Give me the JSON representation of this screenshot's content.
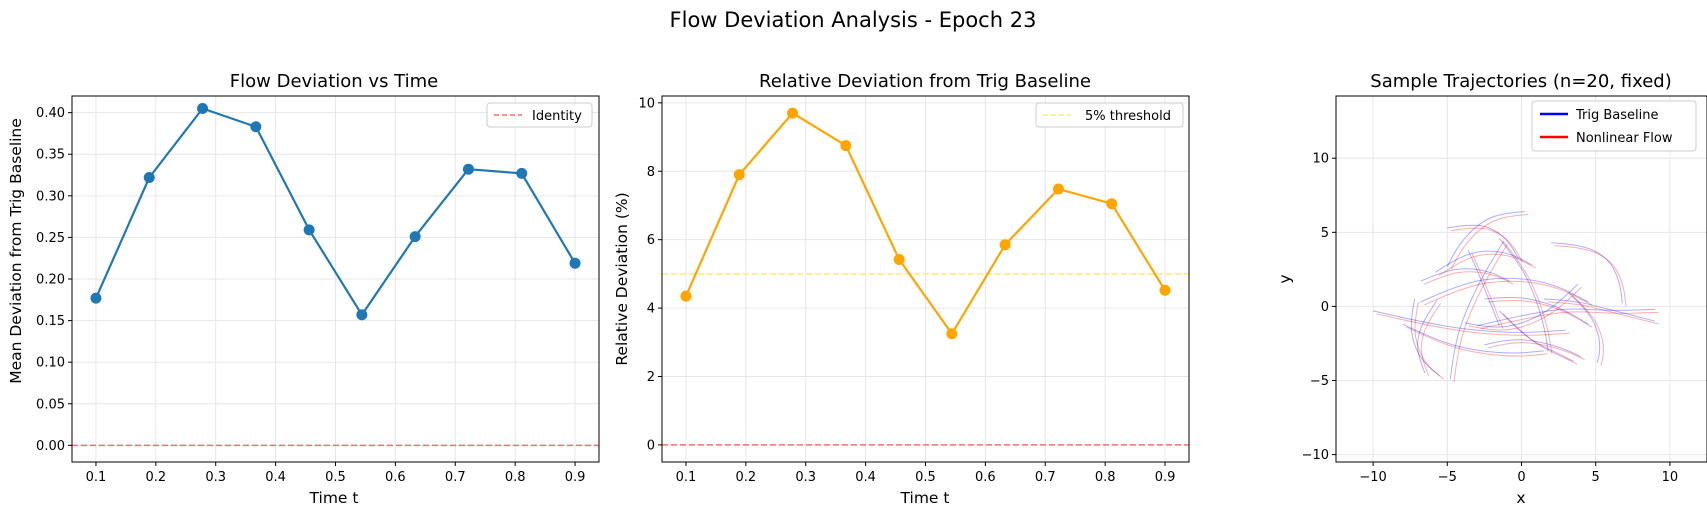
{
  "figure": {
    "title": "Flow Deviation Analysis - Epoch 23"
  },
  "chart_data": [
    {
      "type": "line",
      "title": "Flow Deviation vs Time",
      "xlabel": "Time t",
      "ylabel": "Mean Deviation from Trig Baseline",
      "xlim": [
        0.06,
        0.94
      ],
      "ylim": [
        -0.02,
        0.42
      ],
      "xticks": [
        "0.1",
        "0.2",
        "0.3",
        "0.4",
        "0.5",
        "0.6",
        "0.7",
        "0.8",
        "0.9"
      ],
      "yticks": [
        "0.00",
        "0.05",
        "0.10",
        "0.15",
        "0.20",
        "0.25",
        "0.30",
        "0.35",
        "0.40"
      ],
      "grid": true,
      "legend": "top-right",
      "series": [
        {
          "name": "",
          "color": "#1f77b4",
          "x": [
            0.1,
            0.189,
            0.278,
            0.367,
            0.456,
            0.544,
            0.633,
            0.722,
            0.811,
            0.9
          ],
          "y": [
            0.177,
            0.322,
            0.405,
            0.383,
            0.259,
            0.157,
            0.251,
            0.332,
            0.327,
            0.219
          ]
        }
      ],
      "reference_lines": [
        {
          "name": "Identity",
          "y": 0.0,
          "color": "#ff6b6b",
          "style": "dashed"
        }
      ]
    },
    {
      "type": "line",
      "title": "Relative Deviation from Trig Baseline",
      "xlabel": "Time t",
      "ylabel": "Relative Deviation (%)",
      "xlim": [
        0.06,
        0.94
      ],
      "ylim": [
        -0.5,
        10.2
      ],
      "xticks": [
        "0.1",
        "0.2",
        "0.3",
        "0.4",
        "0.5",
        "0.6",
        "0.7",
        "0.8",
        "0.9"
      ],
      "yticks": [
        "0",
        "2",
        "4",
        "6",
        "8",
        "10"
      ],
      "grid": true,
      "legend": "top-right",
      "series": [
        {
          "name": "",
          "color": "#ffa500",
          "x": [
            0.1,
            0.189,
            0.278,
            0.367,
            0.456,
            0.544,
            0.633,
            0.722,
            0.811,
            0.9
          ],
          "y": [
            4.35,
            7.9,
            9.7,
            8.75,
            5.42,
            3.25,
            5.85,
            7.48,
            7.05,
            4.52
          ]
        }
      ],
      "reference_lines": [
        {
          "name": "5% threshold",
          "y": 5.0,
          "color": "#ffeb70",
          "style": "dashed"
        },
        {
          "name": "",
          "y": 0.0,
          "color": "#ff6b6b",
          "style": "dashed"
        }
      ]
    },
    {
      "type": "line",
      "title": "Sample Trajectories (n=20, fixed)",
      "xlabel": "x",
      "ylabel": "y",
      "xlim": [
        -12.5,
        12.5
      ],
      "ylim": [
        -10.5,
        14.2
      ],
      "xticks": [
        "−10",
        "−5",
        "0",
        "5",
        "10"
      ],
      "yticks": [
        "−10",
        "−5",
        "0",
        "5",
        "10"
      ],
      "grid": true,
      "legend": "top-right",
      "legend_entries": [
        {
          "name": "Trig Baseline",
          "color": "#0000ff"
        },
        {
          "name": "Nonlinear Flow",
          "color": "#ff0000"
        }
      ],
      "trajectories": [
        [
          [
            -10,
            -0.3
          ],
          [
            -7,
            -1
          ],
          [
            -3.5,
            -1.6
          ],
          [
            0,
            -1.8
          ],
          [
            3,
            -1.6
          ]
        ],
        [
          [
            -6.8,
            0.3
          ],
          [
            -4,
            1.6
          ],
          [
            -1,
            2
          ],
          [
            2,
            1.6
          ],
          [
            4.5,
            0.3
          ]
        ],
        [
          [
            -4.8,
            -4.9
          ],
          [
            -4.5,
            -2.4
          ],
          [
            -3.5,
            0.3
          ],
          [
            -2.3,
            2.6
          ],
          [
            -1.2,
            4.4
          ]
        ],
        [
          [
            -1.5,
            4.6
          ],
          [
            -0.2,
            3
          ],
          [
            0.8,
            1
          ],
          [
            1.5,
            -1.2
          ],
          [
            1.8,
            -3
          ]
        ],
        [
          [
            2,
            4.3
          ],
          [
            4,
            4.2
          ],
          [
            5.8,
            3.3
          ],
          [
            6.6,
            1.8
          ],
          [
            6.8,
            0.2
          ]
        ],
        [
          [
            -3,
            -1.3
          ],
          [
            0,
            -0.6
          ],
          [
            3,
            -0.1
          ],
          [
            6,
            -0.3
          ],
          [
            9,
            -0.2
          ]
        ],
        [
          [
            -5,
            5.3
          ],
          [
            -3.2,
            5.6
          ],
          [
            -1.8,
            5.2
          ],
          [
            -0.8,
            4.3
          ],
          [
            -0.2,
            3.2
          ]
        ],
        [
          [
            -6.8,
            1.7
          ],
          [
            -5.2,
            2.4
          ],
          [
            -3.5,
            2.6
          ],
          [
            -2,
            2.3
          ],
          [
            -0.8,
            1.7
          ]
        ],
        [
          [
            0.2,
            6.4
          ],
          [
            -1.5,
            6.3
          ],
          [
            -3,
            5.5
          ],
          [
            -4.2,
            4.2
          ],
          [
            -5,
            2.7
          ]
        ],
        [
          [
            -2.5,
            -2.6
          ],
          [
            -1,
            -2.2
          ],
          [
            1,
            -2.3
          ],
          [
            3,
            -2.9
          ],
          [
            4,
            -3.4
          ]
        ],
        [
          [
            -8,
            -1.2
          ],
          [
            -5.5,
            -2.4
          ],
          [
            -3,
            -3
          ],
          [
            -0.5,
            -3.2
          ],
          [
            1.5,
            -3
          ]
        ],
        [
          [
            -6.5,
            -4.5
          ],
          [
            -7,
            -3.3
          ],
          [
            -7,
            -2
          ],
          [
            -6.5,
            -0.8
          ],
          [
            -5.7,
            0.4
          ]
        ],
        [
          [
            -2.5,
            0.5
          ],
          [
            -0.5,
            0.7
          ],
          [
            1.5,
            0.3
          ],
          [
            3,
            -0.3
          ],
          [
            4.5,
            -1.2
          ]
        ],
        [
          [
            1.5,
            0.5
          ],
          [
            3.5,
            0.4
          ],
          [
            5.5,
            -0.1
          ],
          [
            7.5,
            -0.6
          ],
          [
            9,
            -1
          ]
        ],
        [
          [
            -3.6,
            3.8
          ],
          [
            -3,
            2.5
          ],
          [
            -2.5,
            1.2
          ],
          [
            -2,
            0
          ],
          [
            -1.5,
            -1.3
          ]
        ],
        [
          [
            -7.2,
            0.5
          ],
          [
            -7.5,
            -1
          ],
          [
            -7.3,
            -2.5
          ],
          [
            -6.6,
            -3.8
          ],
          [
            -5.5,
            -4.7
          ]
        ],
        [
          [
            3.2,
            0.9
          ],
          [
            4.5,
            -0.3
          ],
          [
            5.2,
            -1.8
          ],
          [
            5.3,
            -3
          ],
          [
            5.1,
            -3.8
          ]
        ],
        [
          [
            -3.8,
            -1.1
          ],
          [
            -2,
            -1.5
          ],
          [
            0,
            -1.2
          ],
          [
            2,
            -0.2
          ],
          [
            3.8,
            1.5
          ]
        ],
        [
          [
            -5.8,
            2.3
          ],
          [
            -4.3,
            3.3
          ],
          [
            -2.6,
            3.8
          ],
          [
            -0.8,
            3.6
          ],
          [
            0.7,
            2.8
          ]
        ],
        [
          [
            -1.5,
            -0.3
          ],
          [
            -0.3,
            -1.5
          ],
          [
            1,
            -2.5
          ],
          [
            2.5,
            -3.2
          ],
          [
            3.5,
            -3.7
          ]
        ]
      ]
    }
  ]
}
